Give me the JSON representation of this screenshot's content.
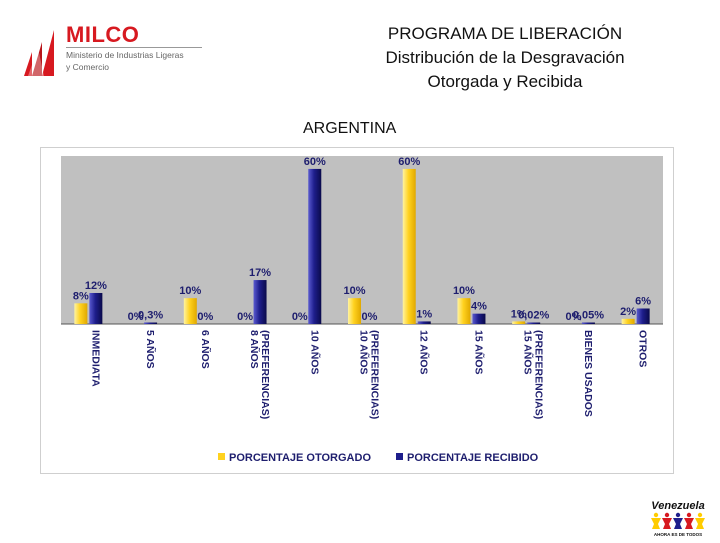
{
  "header": {
    "logo_name": "MILCO",
    "logo_sub_line1": "Ministerio de Industrias Ligeras",
    "logo_sub_line2": "y Comercio",
    "title_line1": "PROGRAMA DE LIBERACIÓN",
    "title_line2": "Distribución de la Desgravación",
    "title_line3": "Otorgada y Recibida",
    "country": "ARGENTINA"
  },
  "badge": {
    "word": "Venezuela",
    "tagline": "AHORA ES DE TODOS"
  },
  "colors": {
    "plot_bg": "#c0c0c0",
    "otorgado": "#ffd21f",
    "recibido": "#1e1e8c",
    "axis_label": "#1e1e6e",
    "brand_red": "#d71920"
  },
  "chart_data": {
    "type": "bar",
    "title": "",
    "xlabel": "",
    "ylabel": "",
    "ylim": [
      0,
      65
    ],
    "grid": false,
    "legend": "bottom-center",
    "categories": [
      "INMEDIATA",
      "5 AÑOS",
      "6 AÑOS",
      "8 AÑOS (PREFERENCIAS)",
      "10 AÑOS",
      "10 AÑOS (PREFERENCIAS)",
      "12 AÑOS",
      "15 AÑOS",
      "15 AÑOS (PREFERENCIAS)",
      "BIENES USADOS",
      "OTROS"
    ],
    "category_lines": [
      [
        "INMEDIATA"
      ],
      [
        "5 AÑOS"
      ],
      [
        "6 AÑOS"
      ],
      [
        "8 AÑOS",
        "(PREFERENCIAS)"
      ],
      [
        "10 AÑOS"
      ],
      [
        "10 AÑOS",
        "(PREFERENCIAS)"
      ],
      [
        "12 AÑOS"
      ],
      [
        "15 AÑOS"
      ],
      [
        "15 AÑOS",
        "(PREFERENCIAS)"
      ],
      [
        "BIENES USADOS"
      ],
      [
        "OTROS"
      ]
    ],
    "series": [
      {
        "name": "PORCENTAJE OTORGADO",
        "values": [
          8,
          0,
          10,
          0,
          0,
          10,
          60,
          10,
          1,
          0,
          2
        ],
        "labels": [
          "8%",
          "0%",
          "10%",
          "0%",
          "0%",
          "10%",
          "60%",
          "10%",
          "1%",
          "0%",
          "2%"
        ]
      },
      {
        "name": "PORCENTAJE RECIBIDO",
        "values": [
          12,
          0.3,
          0,
          17,
          60,
          0,
          1,
          4,
          0.02,
          0.05,
          6
        ],
        "labels": [
          "12%",
          "0,3%",
          "0%",
          "17%",
          "60%",
          "0%",
          "1%",
          "4%",
          "0,02%",
          "0,05%",
          "6%"
        ]
      }
    ]
  }
}
